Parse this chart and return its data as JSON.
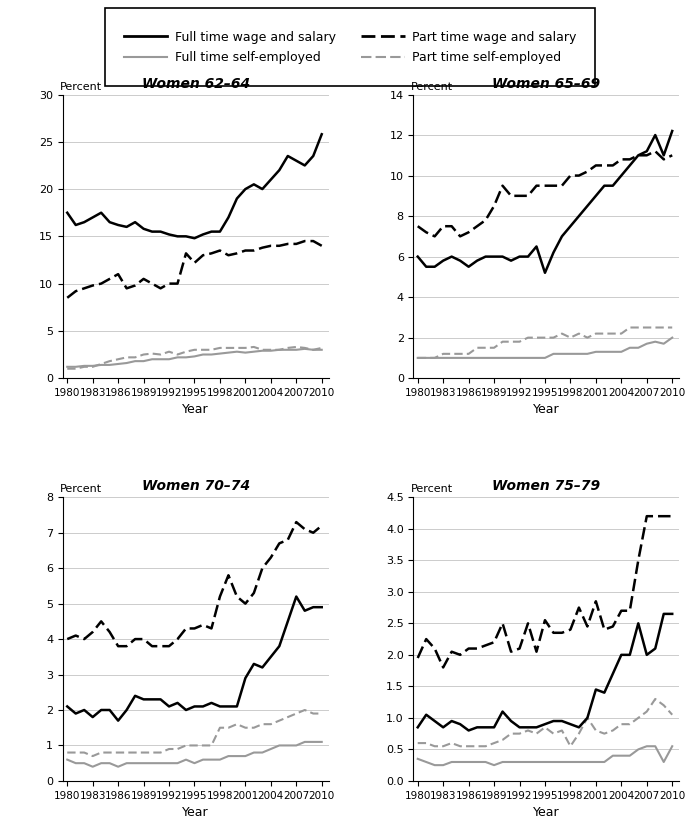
{
  "years": [
    1980,
    1981,
    1982,
    1983,
    1984,
    1985,
    1986,
    1987,
    1988,
    1989,
    1990,
    1991,
    1992,
    1993,
    1994,
    1995,
    1996,
    1997,
    1998,
    1999,
    2000,
    2001,
    2002,
    2003,
    2004,
    2005,
    2006,
    2007,
    2008,
    2009,
    2010
  ],
  "women_62_64": {
    "ft_wage": [
      17.5,
      16.2,
      16.5,
      17.0,
      17.5,
      16.5,
      16.2,
      16.0,
      16.5,
      15.8,
      15.5,
      15.5,
      15.2,
      15.0,
      15.0,
      14.8,
      15.2,
      15.5,
      15.5,
      17.0,
      19.0,
      20.0,
      20.5,
      20.0,
      21.0,
      22.0,
      23.5,
      23.0,
      22.5,
      23.5,
      25.8
    ],
    "ft_self": [
      1.2,
      1.2,
      1.3,
      1.3,
      1.4,
      1.4,
      1.5,
      1.6,
      1.8,
      1.8,
      2.0,
      2.0,
      2.0,
      2.2,
      2.2,
      2.3,
      2.5,
      2.5,
      2.6,
      2.7,
      2.8,
      2.7,
      2.8,
      2.9,
      2.9,
      3.0,
      3.0,
      3.0,
      3.1,
      3.0,
      3.0
    ],
    "pt_wage": [
      8.5,
      9.2,
      9.5,
      9.8,
      10.0,
      10.5,
      11.0,
      9.5,
      9.8,
      10.5,
      10.0,
      9.5,
      10.0,
      10.0,
      13.2,
      12.2,
      13.0,
      13.2,
      13.5,
      13.0,
      13.2,
      13.5,
      13.5,
      13.8,
      14.0,
      14.0,
      14.2,
      14.2,
      14.5,
      14.5,
      14.0
    ],
    "pt_self": [
      1.0,
      1.0,
      1.2,
      1.2,
      1.5,
      1.8,
      2.0,
      2.2,
      2.2,
      2.5,
      2.6,
      2.5,
      2.8,
      2.5,
      2.8,
      3.0,
      3.0,
      3.0,
      3.2,
      3.2,
      3.2,
      3.2,
      3.3,
      3.0,
      3.0,
      3.0,
      3.2,
      3.3,
      3.2,
      3.0,
      3.2
    ],
    "ylim": [
      0,
      30
    ],
    "yticks": [
      0,
      5,
      10,
      15,
      20,
      25,
      30
    ],
    "title": "Women 62–64"
  },
  "women_65_69": {
    "ft_wage": [
      6.0,
      5.5,
      5.5,
      5.8,
      6.0,
      5.8,
      5.5,
      5.8,
      6.0,
      6.0,
      6.0,
      5.8,
      6.0,
      6.0,
      6.5,
      5.2,
      6.2,
      7.0,
      7.5,
      8.0,
      8.5,
      9.0,
      9.5,
      9.5,
      10.0,
      10.5,
      11.0,
      11.2,
      12.0,
      11.0,
      12.2
    ],
    "ft_self": [
      1.0,
      1.0,
      1.0,
      1.0,
      1.0,
      1.0,
      1.0,
      1.0,
      1.0,
      1.0,
      1.0,
      1.0,
      1.0,
      1.0,
      1.0,
      1.0,
      1.2,
      1.2,
      1.2,
      1.2,
      1.2,
      1.3,
      1.3,
      1.3,
      1.3,
      1.5,
      1.5,
      1.7,
      1.8,
      1.7,
      2.0
    ],
    "pt_wage": [
      7.5,
      7.2,
      7.0,
      7.5,
      7.5,
      7.0,
      7.2,
      7.5,
      7.8,
      8.5,
      9.5,
      9.0,
      9.0,
      9.0,
      9.5,
      9.5,
      9.5,
      9.5,
      10.0,
      10.0,
      10.2,
      10.5,
      10.5,
      10.5,
      10.8,
      10.8,
      11.0,
      11.0,
      11.2,
      10.8,
      11.0
    ],
    "pt_self": [
      1.0,
      1.0,
      1.0,
      1.2,
      1.2,
      1.2,
      1.2,
      1.5,
      1.5,
      1.5,
      1.8,
      1.8,
      1.8,
      2.0,
      2.0,
      2.0,
      2.0,
      2.2,
      2.0,
      2.2,
      2.0,
      2.2,
      2.2,
      2.2,
      2.2,
      2.5,
      2.5,
      2.5,
      2.5,
      2.5,
      2.5
    ],
    "ylim": [
      0,
      14
    ],
    "yticks": [
      0,
      2,
      4,
      6,
      8,
      10,
      12,
      14
    ],
    "title": "Women 65–69"
  },
  "women_70_74": {
    "ft_wage": [
      2.1,
      1.9,
      2.0,
      1.8,
      2.0,
      2.0,
      1.7,
      2.0,
      2.4,
      2.3,
      2.3,
      2.3,
      2.1,
      2.2,
      2.0,
      2.1,
      2.1,
      2.2,
      2.1,
      2.1,
      2.1,
      2.9,
      3.3,
      3.2,
      3.5,
      3.8,
      4.5,
      5.2,
      4.8,
      4.9,
      4.9
    ],
    "ft_self": [
      0.6,
      0.5,
      0.5,
      0.4,
      0.5,
      0.5,
      0.4,
      0.5,
      0.5,
      0.5,
      0.5,
      0.5,
      0.5,
      0.5,
      0.6,
      0.5,
      0.6,
      0.6,
      0.6,
      0.7,
      0.7,
      0.7,
      0.8,
      0.8,
      0.9,
      1.0,
      1.0,
      1.0,
      1.1,
      1.1,
      1.1
    ],
    "pt_wage": [
      4.0,
      4.1,
      4.0,
      4.2,
      4.5,
      4.2,
      3.8,
      3.8,
      4.0,
      4.0,
      3.8,
      3.8,
      3.8,
      4.0,
      4.3,
      4.3,
      4.4,
      4.3,
      5.2,
      5.8,
      5.2,
      5.0,
      5.3,
      6.0,
      6.3,
      6.7,
      6.8,
      7.3,
      7.1,
      7.0,
      7.2
    ],
    "pt_self": [
      0.8,
      0.8,
      0.8,
      0.7,
      0.8,
      0.8,
      0.8,
      0.8,
      0.8,
      0.8,
      0.8,
      0.8,
      0.9,
      0.9,
      1.0,
      1.0,
      1.0,
      1.0,
      1.5,
      1.5,
      1.6,
      1.5,
      1.5,
      1.6,
      1.6,
      1.7,
      1.8,
      1.9,
      2.0,
      1.9,
      1.9
    ],
    "ylim": [
      0,
      8
    ],
    "yticks": [
      0,
      1,
      2,
      3,
      4,
      5,
      6,
      7,
      8
    ],
    "title": "Women 70–74"
  },
  "women_75_79": {
    "ft_wage": [
      0.85,
      1.05,
      0.95,
      0.85,
      0.95,
      0.9,
      0.8,
      0.85,
      0.85,
      0.85,
      1.1,
      0.95,
      0.85,
      0.85,
      0.85,
      0.9,
      0.95,
      0.95,
      0.9,
      0.85,
      1.0,
      1.45,
      1.4,
      1.7,
      2.0,
      2.0,
      2.5,
      2.0,
      2.1,
      2.65,
      2.65
    ],
    "ft_self": [
      0.35,
      0.3,
      0.25,
      0.25,
      0.3,
      0.3,
      0.3,
      0.3,
      0.3,
      0.25,
      0.3,
      0.3,
      0.3,
      0.3,
      0.3,
      0.3,
      0.3,
      0.3,
      0.3,
      0.3,
      0.3,
      0.3,
      0.3,
      0.4,
      0.4,
      0.4,
      0.5,
      0.55,
      0.55,
      0.3,
      0.55
    ],
    "pt_wage": [
      1.95,
      2.25,
      2.1,
      1.8,
      2.05,
      2.0,
      2.1,
      2.1,
      2.15,
      2.2,
      2.5,
      2.05,
      2.1,
      2.5,
      2.05,
      2.55,
      2.35,
      2.35,
      2.4,
      2.75,
      2.45,
      2.85,
      2.4,
      2.45,
      2.7,
      2.7,
      3.5,
      4.2,
      4.2,
      4.2,
      4.2
    ],
    "pt_self": [
      0.6,
      0.6,
      0.55,
      0.55,
      0.6,
      0.55,
      0.55,
      0.55,
      0.55,
      0.6,
      0.65,
      0.75,
      0.75,
      0.8,
      0.75,
      0.85,
      0.75,
      0.8,
      0.55,
      0.75,
      1.0,
      0.8,
      0.75,
      0.8,
      0.9,
      0.9,
      1.0,
      1.1,
      1.3,
      1.2,
      1.05
    ],
    "ylim": [
      0,
      4.5
    ],
    "yticks": [
      0.0,
      0.5,
      1.0,
      1.5,
      2.0,
      2.5,
      3.0,
      3.5,
      4.0,
      4.5
    ],
    "title": "Women 75–79"
  },
  "xticks": [
    1980,
    1983,
    1986,
    1989,
    1992,
    1995,
    1998,
    2001,
    2004,
    2007,
    2010
  ],
  "legend_labels": [
    "Full time wage and salary",
    "Full time self-employed",
    "Part time wage and salary",
    "Part time self-employed"
  ],
  "xlabel": "Year",
  "ylabel": "Percent",
  "ft_wage_color": "#000000",
  "ft_self_color": "#999999",
  "pt_wage_color": "#000000",
  "pt_self_color": "#999999"
}
